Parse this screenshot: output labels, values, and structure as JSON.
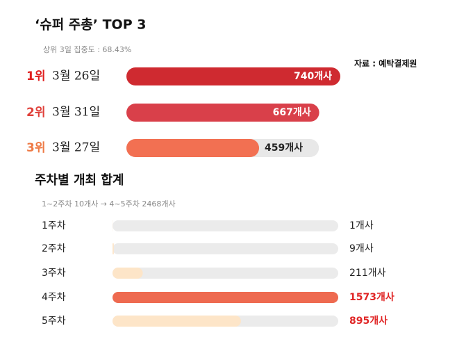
{
  "chart_data": [
    {
      "type": "bar",
      "title": "‘슈퍼 주총’ TOP 3",
      "subtitle": "상위 3일 집중도 : 68.43%",
      "source": "자료 : 예탁결제원",
      "ranks": [
        "1위",
        "2위",
        "3위"
      ],
      "rank_colors": [
        "#e01e1e",
        "#e0403a",
        "#ee7a45"
      ],
      "categories": [
        "3월 26일",
        "3월 31일",
        "3월 27일"
      ],
      "values": [
        740,
        667,
        459
      ],
      "value_labels": [
        "740개사",
        "667개사",
        "459개사"
      ],
      "colors": [
        "#cf2a30",
        "#d9404a",
        "#f27052"
      ]
    },
    {
      "type": "bar",
      "title": "주차별 개최 합계",
      "subtitle": "1~2주차 10개사 → 4~5주차 2468개사",
      "categories": [
        "1주차",
        "2주차",
        "3주차",
        "4주차",
        "5주차"
      ],
      "values": [
        1,
        9,
        211,
        1573,
        895
      ],
      "value_labels": [
        "1개사",
        "9개사",
        "211개사",
        "1573개사",
        "895개사"
      ],
      "colors": [
        "#fde5c8",
        "#fde5c8",
        "#fde5c8",
        "#ee6a50",
        "#fde5c8"
      ],
      "label_colors": [
        "#222222",
        "#222222",
        "#222222",
        "#e02525",
        "#e02525"
      ]
    }
  ]
}
